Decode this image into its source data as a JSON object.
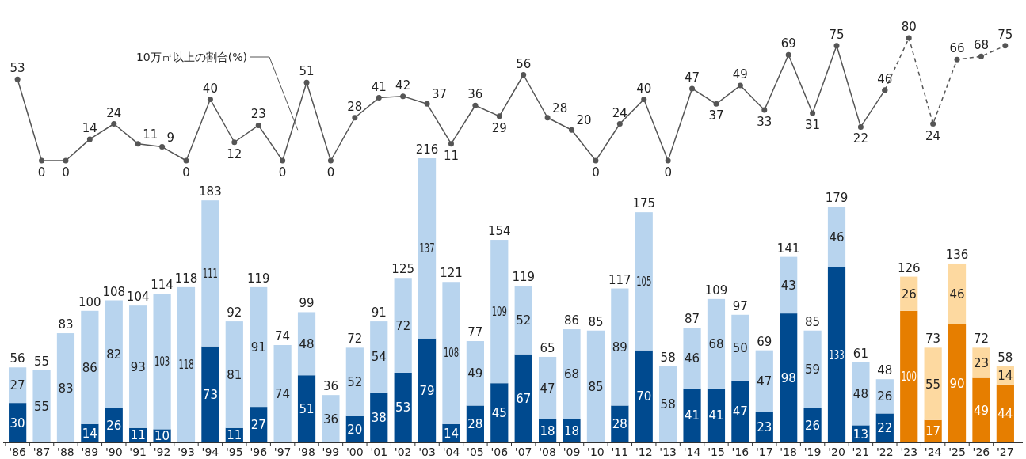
{
  "chart_data": [
    {
      "type": "line",
      "categories": [
        null,
        null,
        null,
        null,
        null,
        null,
        null,
        null,
        null,
        null,
        null,
        null,
        null,
        null,
        null,
        null,
        null,
        null,
        null,
        null,
        null,
        null,
        null,
        null,
        null,
        null,
        null,
        null,
        null,
        null,
        null,
        null,
        null,
        null,
        null,
        null,
        null,
        null,
        null,
        null,
        null,
        null
      ],
      "marker": "circle",
      "annotations": [
        "10万㎡以上の割合(%)"
      ],
      "series": [
        {
          "color": "#555555",
          "line_style": "solid",
          "values": [
            53,
            0,
            0,
            14,
            24,
            11,
            9,
            0,
            40,
            12,
            23,
            0,
            51,
            0,
            28,
            41,
            42,
            37,
            11,
            36,
            29,
            56,
            28,
            20,
            0,
            24,
            40,
            0,
            47,
            37,
            49,
            33,
            69,
            31,
            75,
            22,
            46,
            null,
            null,
            null,
            null,
            null
          ],
          "value_labels": [
            "53",
            "0",
            "0",
            "14",
            "24",
            "11",
            "9",
            "0",
            "40",
            "12",
            "23",
            "0",
            "51",
            "0",
            "28",
            "41",
            "42",
            "37",
            "11",
            "36",
            "29",
            "56",
            "28",
            "20",
            "0",
            "24",
            "40",
            "0",
            "47",
            "37",
            "49",
            "33",
            "69",
            "31",
            "75",
            "22",
            "46",
            null,
            null,
            null,
            null,
            null
          ]
        },
        {
          "color": "#555555",
          "line_style": "dashed",
          "values": [
            null,
            null,
            null,
            null,
            null,
            null,
            null,
            null,
            null,
            null,
            null,
            null,
            null,
            null,
            null,
            null,
            null,
            null,
            null,
            null,
            null,
            null,
            null,
            null,
            null,
            null,
            null,
            null,
            null,
            null,
            null,
            null,
            null,
            null,
            null,
            null,
            46,
            80,
            24,
            66,
            68,
            75
          ],
          "value_labels": [
            null,
            null,
            null,
            null,
            null,
            null,
            null,
            null,
            null,
            null,
            null,
            null,
            null,
            null,
            null,
            null,
            null,
            null,
            null,
            null,
            null,
            null,
            null,
            null,
            null,
            null,
            null,
            null,
            null,
            null,
            null,
            null,
            null,
            null,
            null,
            null,
            null,
            "80",
            "24",
            "66",
            "68",
            "75"
          ]
        }
      ]
    },
    {
      "type": "bar",
      "stacked": true,
      "data_labels": true,
      "categories": [
        "'86",
        "'87",
        "'88",
        "'89",
        "'90",
        "'91",
        "'92",
        "'93",
        "'94",
        "'95",
        "'96",
        "'97",
        "'98",
        "'99",
        "'00",
        "'01",
        "'02",
        "'03",
        "'04",
        "'05",
        "'06",
        "'07",
        "'08",
        "'09",
        "'10",
        "'11",
        "'12",
        "'13",
        "'14",
        "'15",
        "'16",
        "'17",
        "'18",
        "'19",
        "'20",
        "'21",
        "'22",
        "'23",
        "'24",
        "'25",
        "'26",
        "'27"
      ],
      "series": [
        {
          "colors": [
            "#004a8f",
            null,
            null,
            "#004a8f",
            "#004a8f",
            "#004a8f",
            "#004a8f",
            null,
            "#004a8f",
            "#004a8f",
            "#004a8f",
            null,
            "#004a8f",
            null,
            "#004a8f",
            "#004a8f",
            "#004a8f",
            "#004a8f",
            "#004a8f",
            "#004a8f",
            "#004a8f",
            "#004a8f",
            "#004a8f",
            "#004a8f",
            null,
            "#004a8f",
            "#004a8f",
            null,
            "#004a8f",
            "#004a8f",
            "#004a8f",
            "#004a8f",
            "#004a8f",
            "#004a8f",
            "#004a8f",
            "#004a8f",
            "#004a8f",
            "#e67e00",
            "#e67e00",
            "#e67e00",
            "#e67e00",
            "#e67e00"
          ],
          "values": [
            30,
            null,
            null,
            14,
            26,
            11,
            10,
            null,
            73,
            11,
            27,
            null,
            51,
            null,
            20,
            38,
            53,
            79,
            14,
            28,
            45,
            67,
            18,
            18,
            null,
            28,
            70,
            null,
            41,
            41,
            47,
            23,
            98,
            26,
            133,
            13,
            22,
            100,
            17,
            90,
            49,
            44
          ]
        },
        {
          "colors": [
            "#b8d4ee",
            "#b8d4ee",
            "#b8d4ee",
            "#b8d4ee",
            "#b8d4ee",
            "#b8d4ee",
            "#b8d4ee",
            "#b8d4ee",
            "#b8d4ee",
            "#b8d4ee",
            "#b8d4ee",
            "#b8d4ee",
            "#b8d4ee",
            "#b8d4ee",
            "#b8d4ee",
            "#b8d4ee",
            "#b8d4ee",
            "#b8d4ee",
            "#b8d4ee",
            "#b8d4ee",
            "#b8d4ee",
            "#b8d4ee",
            "#b8d4ee",
            "#b8d4ee",
            "#b8d4ee",
            "#b8d4ee",
            "#b8d4ee",
            "#b8d4ee",
            "#b8d4ee",
            "#b8d4ee",
            "#b8d4ee",
            "#b8d4ee",
            "#b8d4ee",
            "#b8d4ee",
            "#b8d4ee",
            "#b8d4ee",
            "#b8d4ee",
            "#fdd9a0",
            "#fdd9a0",
            "#fdd9a0",
            "#fdd9a0",
            "#fdd9a0"
          ],
          "values": [
            27,
            55,
            83,
            86,
            82,
            93,
            103,
            118,
            111,
            81,
            91,
            74,
            48,
            36,
            52,
            54,
            72,
            137,
            108,
            49,
            109,
            52,
            47,
            68,
            85,
            89,
            105,
            58,
            46,
            68,
            50,
            47,
            43,
            59,
            46,
            48,
            26,
            26,
            55,
            46,
            23,
            14
          ]
        }
      ],
      "totals": [
        "56",
        "55",
        "83",
        "100",
        "108",
        "104",
        "114",
        "118",
        "183",
        "92",
        "119",
        "74",
        "99",
        "36",
        "72",
        "91",
        "125",
        "216",
        "121",
        "77",
        "154",
        "119",
        "65",
        "86",
        "85",
        "117",
        "175",
        "58",
        "87",
        "109",
        "97",
        "69",
        "141",
        "85",
        "179",
        "61",
        "48",
        "126",
        "73",
        "136",
        "72",
        "58"
      ]
    }
  ]
}
